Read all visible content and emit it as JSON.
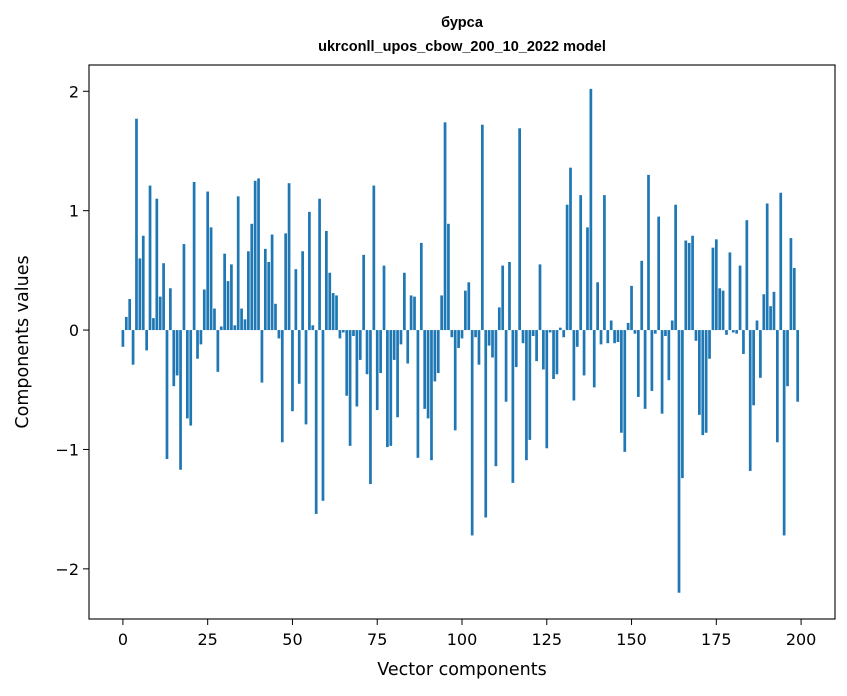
{
  "chart_data": {
    "type": "bar",
    "title": "бурса",
    "subtitle": "ukrconll_upos_cbow_200_10_2022 model",
    "xlabel": "Vector components",
    "ylabel": "Components values",
    "xlim": [
      -10,
      210
    ],
    "ylim": [
      -2.42,
      2.22
    ],
    "xticks": [
      0,
      25,
      50,
      75,
      100,
      125,
      150,
      175,
      200
    ],
    "xtick_labels": [
      "0",
      "25",
      "50",
      "75",
      "100",
      "125",
      "150",
      "175",
      "200"
    ],
    "yticks": [
      -2,
      -1,
      0,
      1,
      2
    ],
    "ytick_labels": [
      "−2",
      "−1",
      "0",
      "1",
      "2"
    ],
    "grid": false,
    "bar_color": "#1f77b4",
    "x": [
      0,
      1,
      2,
      3,
      4,
      5,
      6,
      7,
      8,
      9,
      10,
      11,
      12,
      13,
      14,
      15,
      16,
      17,
      18,
      19,
      20,
      21,
      22,
      23,
      24,
      25,
      26,
      27,
      28,
      29,
      30,
      31,
      32,
      33,
      34,
      35,
      36,
      37,
      38,
      39,
      40,
      41,
      42,
      43,
      44,
      45,
      46,
      47,
      48,
      49,
      50,
      51,
      52,
      53,
      54,
      55,
      56,
      57,
      58,
      59,
      60,
      61,
      62,
      63,
      64,
      65,
      66,
      67,
      68,
      69,
      70,
      71,
      72,
      73,
      74,
      75,
      76,
      77,
      78,
      79,
      80,
      81,
      82,
      83,
      84,
      85,
      86,
      87,
      88,
      89,
      90,
      91,
      92,
      93,
      94,
      95,
      96,
      97,
      98,
      99,
      100,
      101,
      102,
      103,
      104,
      105,
      106,
      107,
      108,
      109,
      110,
      111,
      112,
      113,
      114,
      115,
      116,
      117,
      118,
      119,
      120,
      121,
      122,
      123,
      124,
      125,
      126,
      127,
      128,
      129,
      130,
      131,
      132,
      133,
      134,
      135,
      136,
      137,
      138,
      139,
      140,
      141,
      142,
      143,
      144,
      145,
      146,
      147,
      148,
      149,
      150,
      151,
      152,
      153,
      154,
      155,
      156,
      157,
      158,
      159,
      160,
      161,
      162,
      163,
      164,
      165,
      166,
      167,
      168,
      169,
      170,
      171,
      172,
      173,
      174,
      175,
      176,
      177,
      178,
      179,
      180,
      181,
      182,
      183,
      184,
      185,
      186,
      187,
      188,
      189,
      190,
      191,
      192,
      193,
      194,
      195,
      196,
      197,
      198,
      199
    ],
    "values": [
      -0.14,
      0.11,
      0.26,
      -0.29,
      1.77,
      0.6,
      0.79,
      -0.17,
      1.21,
      0.1,
      1.1,
      0.28,
      0.56,
      -1.08,
      0.35,
      -0.47,
      -0.38,
      -1.17,
      0.72,
      -0.74,
      -0.8,
      1.24,
      -0.24,
      -0.12,
      0.34,
      1.16,
      0.86,
      0.18,
      -0.35,
      0.03,
      0.64,
      0.41,
      0.55,
      0.04,
      1.12,
      0.18,
      0.09,
      0.66,
      0.89,
      1.25,
      1.27,
      -0.44,
      0.68,
      0.57,
      0.8,
      0.22,
      -0.07,
      -0.94,
      0.81,
      1.23,
      -0.68,
      0.51,
      -0.45,
      0.66,
      -0.79,
      0.99,
      0.04,
      -1.54,
      1.1,
      -1.43,
      0.83,
      0.48,
      0.31,
      0.29,
      -0.07,
      -0.02,
      -0.55,
      -0.97,
      -0.05,
      -0.64,
      -0.25,
      0.63,
      -0.37,
      -1.29,
      1.21,
      -0.67,
      -0.36,
      0.54,
      -0.98,
      -0.97,
      -0.25,
      -0.73,
      -0.12,
      0.48,
      -0.28,
      0.29,
      0.28,
      -1.07,
      0.73,
      -0.66,
      -0.74,
      -1.09,
      -0.43,
      -0.36,
      0.29,
      1.74,
      0.89,
      -0.06,
      -0.84,
      -0.15,
      -0.07,
      0.33,
      0.4,
      -1.72,
      -0.06,
      -0.29,
      1.72,
      -1.57,
      -0.13,
      -0.23,
      -1.14,
      0.19,
      0.54,
      -0.6,
      0.57,
      -1.28,
      -0.31,
      1.69,
      -0.11,
      -1.09,
      -0.92,
      -0.05,
      -0.26,
      0.55,
      -0.33,
      -0.99,
      -0.02,
      -0.41,
      -0.37,
      0.02,
      -0.06,
      1.05,
      1.36,
      -0.59,
      -0.14,
      1.13,
      -0.38,
      0.86,
      2.02,
      -0.48,
      0.4,
      -0.12,
      1.13,
      -0.11,
      0.08,
      -0.11,
      -0.1,
      -0.86,
      -1.02,
      0.06,
      0.37,
      -0.03,
      -0.56,
      0.58,
      -0.66,
      1.3,
      -0.51,
      -0.03,
      0.95,
      -0.7,
      -0.05,
      -0.42,
      0.08,
      1.05,
      -2.2,
      -1.24,
      0.75,
      0.73,
      0.79,
      -0.09,
      -0.71,
      -0.88,
      -0.86,
      -0.24,
      0.69,
      0.76,
      0.35,
      0.33,
      -0.04,
      0.65,
      -0.02,
      -0.03,
      0.54,
      -0.2,
      0.92,
      -1.18,
      -0.63,
      0.08,
      -0.4,
      0.3,
      1.06,
      0.2,
      0.32,
      -0.94,
      1.15,
      -1.72,
      -0.47,
      0.77,
      0.52,
      -0.6
    ]
  }
}
